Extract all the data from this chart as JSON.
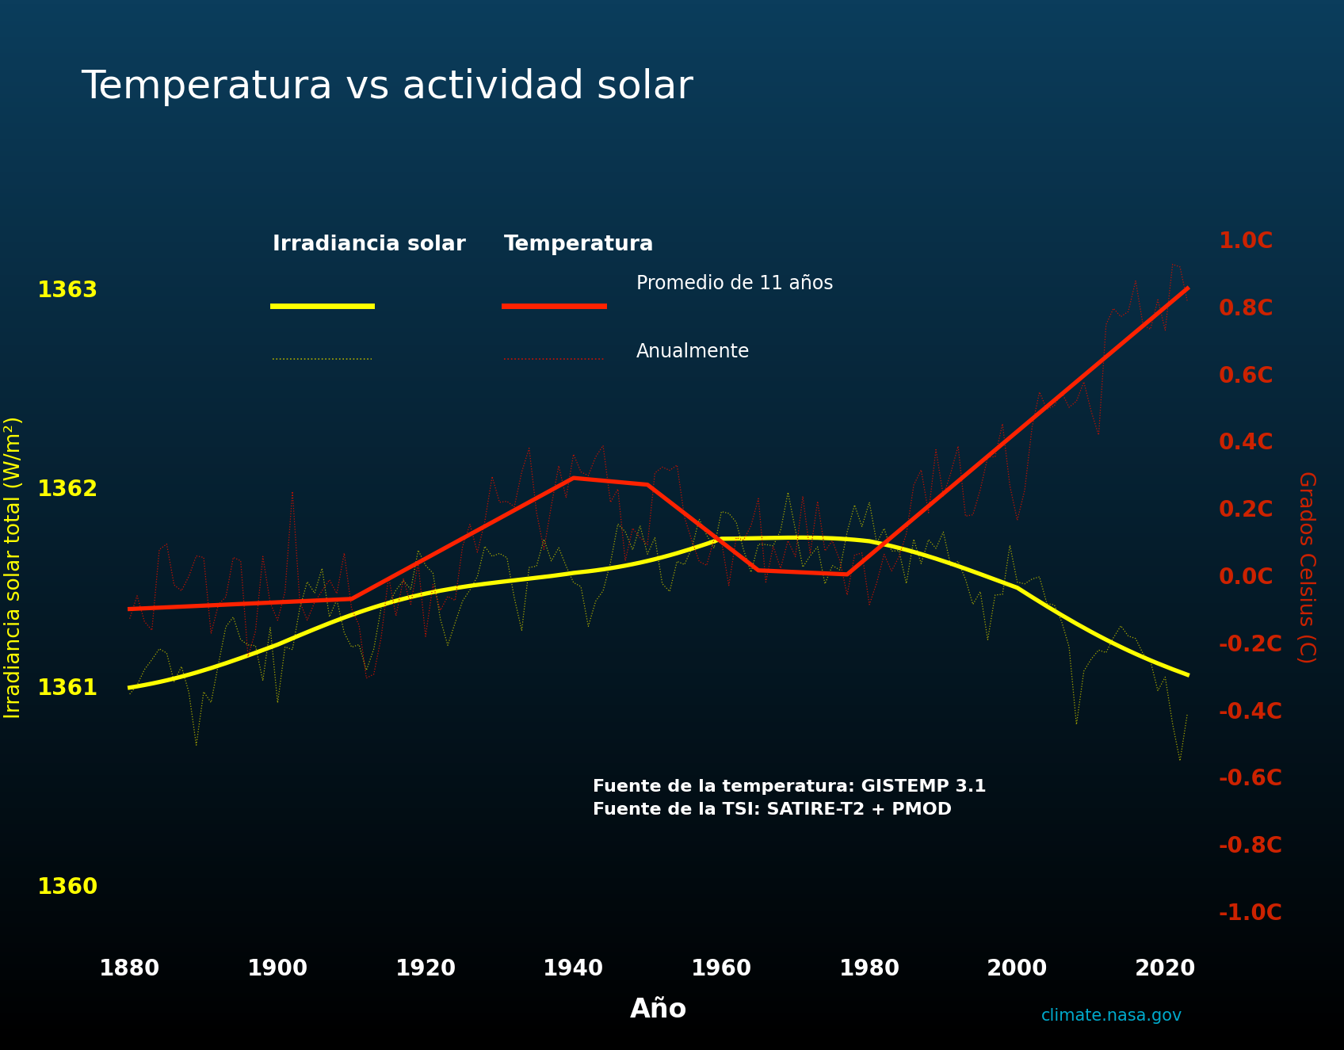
{
  "title": "Temperatura vs actividad solar",
  "xlabel": "Año",
  "ylabel_left": "Irradiancia solar total (W/m²)",
  "ylabel_right": "Grados Celsius (C)",
  "bg_top": "#000000",
  "bg_bottom": "#0a3d5c",
  "title_color": "#ffffff",
  "axis_color": "#ffffff",
  "left_tick_color": "#ffff00",
  "right_tick_color": "#cc2200",
  "solar_smooth_color": "#ffff00",
  "solar_annual_color": "#aaaa00",
  "temp_smooth_color": "#ff2200",
  "temp_annual_color": "#cc1100",
  "source_text_line1": "Fuente de la temperatura: GISTEMP 3.1",
  "source_text_line2": "Fuente de la TSI: SATIRE-T2 + PMOD",
  "watermark": "climate.nasa.gov",
  "watermark_color": "#00aacc",
  "left_ylim": [
    1359.7,
    1363.5
  ],
  "right_ylim": [
    -1.1,
    1.15
  ],
  "left_yticks": [
    1360,
    1361,
    1362,
    1363
  ],
  "right_yticks": [
    -1.0,
    -0.8,
    -0.6,
    -0.4,
    -0.2,
    0.0,
    0.2,
    0.4,
    0.6,
    0.8,
    1.0
  ],
  "xlim": [
    1877,
    2026
  ],
  "xticks": [
    1880,
    1900,
    1920,
    1940,
    1960,
    1980,
    2000,
    2020
  ]
}
